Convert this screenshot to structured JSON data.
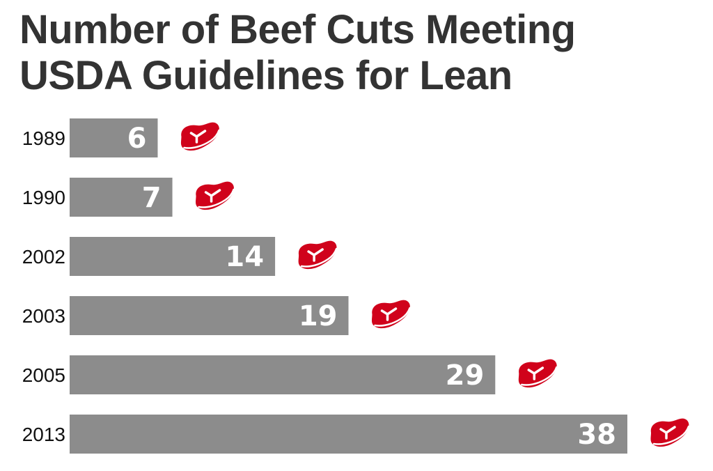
{
  "chart_data": {
    "type": "bar",
    "orientation": "horizontal",
    "title": "Number of Beef Cuts Meeting USDA Guidelines for Lean",
    "title_lines": [
      "Number of Beef Cuts Meeting",
      "USDA Guidelines for Lean"
    ],
    "xlabel": "",
    "ylabel": "",
    "categories": [
      "1989",
      "1990",
      "2002",
      "2003",
      "2005",
      "2013"
    ],
    "values": [
      6,
      7,
      14,
      19,
      29,
      38
    ],
    "xlim": [
      0,
      38
    ],
    "grid": false,
    "legend": "none",
    "bar_color": "#8c8c8c",
    "icon": "steak-icon",
    "icon_color": "#d0021b",
    "title_color": "#333333"
  }
}
